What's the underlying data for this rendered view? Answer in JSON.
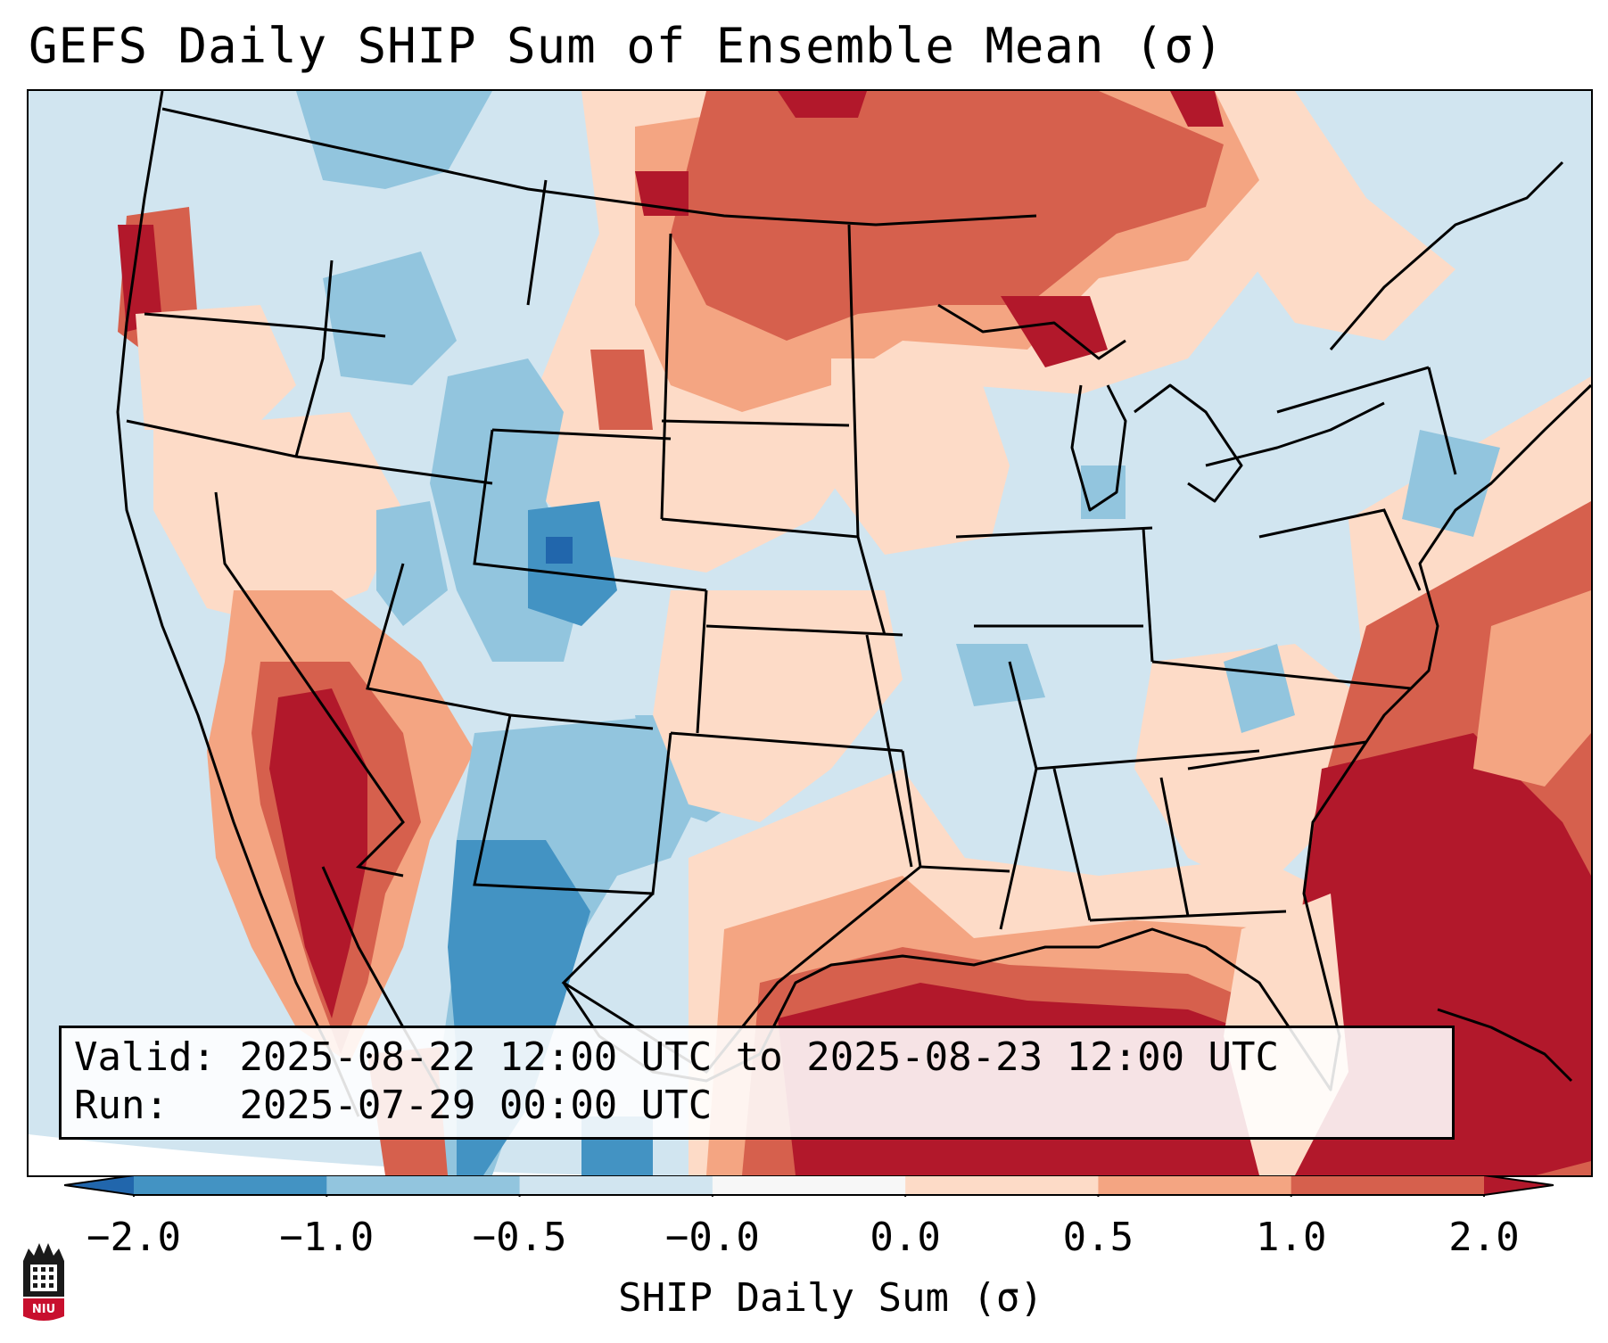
{
  "title": "GEFS Daily SHIP Sum of Ensemble Mean (σ)",
  "info": {
    "valid_label": "Valid:",
    "valid_value": "2025-08-22 12:00 UTC to 2025-08-23 12:00 UTC",
    "run_label": "Run:",
    "run_value": "2025-07-29 00:00 UTC"
  },
  "colorbar": {
    "label": "SHIP Daily Sum (σ)",
    "ticks": [
      "−2.0",
      "−1.0",
      "−0.5",
      "−0.0",
      "0.0",
      "0.5",
      "1.0",
      "2.0"
    ],
    "bins": [
      {
        "range": "< -2.0",
        "color": "#2166ac"
      },
      {
        "range": "-2.0 to -1.0",
        "color": "#4393c3"
      },
      {
        "range": "-1.0 to -0.5",
        "color": "#92c5de"
      },
      {
        "range": "-0.5 to -0.0",
        "color": "#d1e5f0"
      },
      {
        "range": "-0.0 to 0.0",
        "color": "#f7f7f7"
      },
      {
        "range": "0.0 to 0.5",
        "color": "#fddbc7"
      },
      {
        "range": "0.5 to 1.0",
        "color": "#f4a582"
      },
      {
        "range": "1.0 to 2.0",
        "color": "#d6604d"
      },
      {
        "range": "> 2.0",
        "color": "#b2182b"
      }
    ]
  },
  "logo_text": "NIU"
}
